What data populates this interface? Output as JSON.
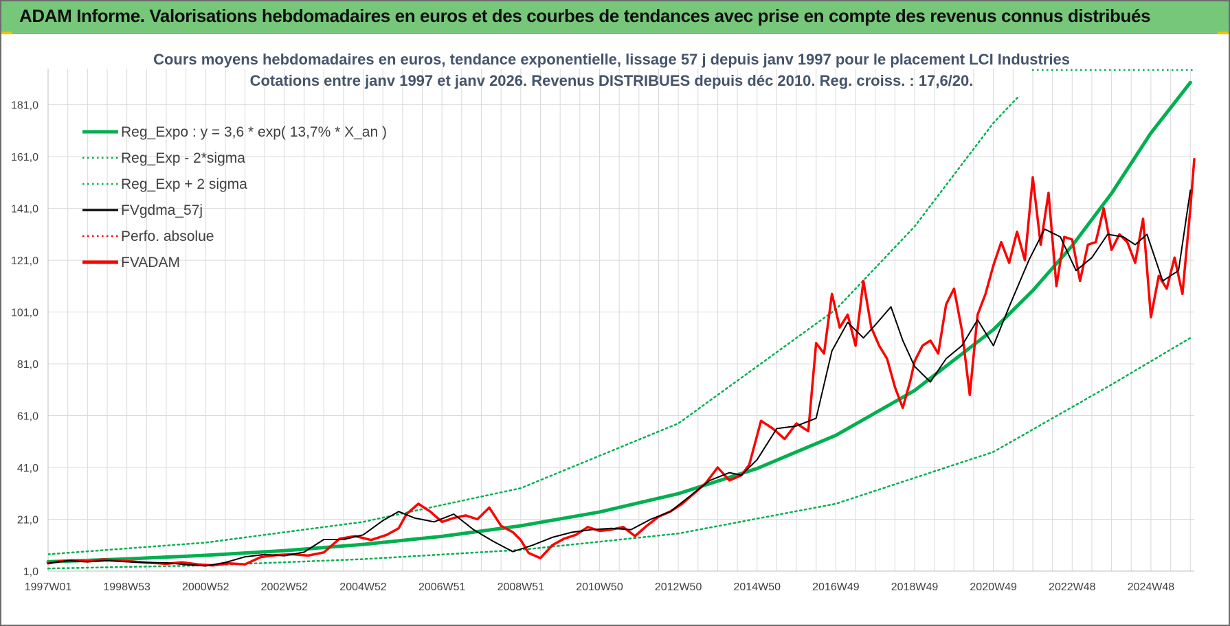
{
  "header": {
    "title": "ADAM Informe. Valorisations hebdomadaires en euros et des courbes de tendances avec prise en compte des revenus connus distribués"
  },
  "colors": {
    "banner_bg": "#77c77a",
    "regression": "#00b050",
    "smoothed": "#000000",
    "price": "#ff0000",
    "grid": "#d9d9d9",
    "title_text": "#44546a"
  },
  "chart_data": {
    "type": "line",
    "title": "Cours moyens hebdomadaires en euros, tendance exponentielle, lissage 57 j depuis janv 1997 pour le placement LCI Industries",
    "subtitle": "Cotations entre janv 1997 et janv 2026. Revenus DISTRIBUES depuis déc 2010. Reg. croiss. : 17,6/20.",
    "xlabel": "",
    "ylabel": "",
    "ylim": [
      1,
      187
    ],
    "xlim": [
      1997.0,
      2026.1
    ],
    "yticks": [
      "1,0",
      "21,0",
      "41,0",
      "61,0",
      "81,0",
      "101,0",
      "121,0",
      "141,0",
      "161,0",
      "181,0"
    ],
    "ytick_values": [
      1,
      21,
      41,
      61,
      81,
      101,
      121,
      141,
      161,
      181
    ],
    "xticks": [
      "1997W01",
      "1998W53",
      "2000W52",
      "2002W52",
      "2004W52",
      "2006W51",
      "2008W51",
      "2010W50",
      "2012W50",
      "2014W50",
      "2016W49",
      "2018W49",
      "2020W49",
      "2022W48",
      "2024W48"
    ],
    "xtick_values": [
      1997.0,
      1999.0,
      2001.0,
      2003.0,
      2005.0,
      2007.0,
      2009.0,
      2011.0,
      2013.0,
      2015.0,
      2017.0,
      2019.0,
      2021.0,
      2023.0,
      2025.0
    ],
    "legend": [
      {
        "key": "reg",
        "label": "Reg_Expo : y = 3,6 * exp( 13,7% *  X_an )",
        "style": "solid-thick",
        "color": "#00b050"
      },
      {
        "key": "lower",
        "label": "Reg_Exp - 2*sigma",
        "style": "dotted",
        "color": "#00b050"
      },
      {
        "key": "upper",
        "label": "Reg_Exp + 2 sigma",
        "style": "dotted",
        "color": "#00b050"
      },
      {
        "key": "smooth",
        "label": "FVgdma_57j",
        "style": "solid",
        "color": "#000000"
      },
      {
        "key": "perfo",
        "label": "Perfo. absolue",
        "style": "dotted",
        "color": "#ff0000"
      },
      {
        "key": "price",
        "label": "FVADAM",
        "style": "solid-thick",
        "color": "#ff0000"
      }
    ],
    "series": [
      {
        "name": "Reg_Expo",
        "key": "reg",
        "x": [
          1997,
          1999,
          2001,
          2003,
          2005,
          2007,
          2009,
          2011,
          2013,
          2015,
          2017,
          2019,
          2021,
          2022,
          2023,
          2024,
          2025,
          2026
        ],
        "values": [
          4.6,
          5.7,
          7.1,
          8.9,
          11.3,
          14.4,
          18.5,
          23.8,
          30.9,
          40.6,
          53.4,
          70.7,
          94.2,
          109.3,
          126.6,
          146.8,
          170.1,
          189.6
        ]
      },
      {
        "name": "Reg_Exp - 2*sigma",
        "key": "lower",
        "x": [
          1997,
          2001,
          2005,
          2009,
          2013,
          2017,
          2021,
          2024,
          2026
        ],
        "values": [
          2.0,
          3.2,
          5.6,
          9.2,
          15.5,
          27.0,
          47.0,
          73.0,
          91.0
        ]
      },
      {
        "name": "Reg_Exp + 2 sigma",
        "key": "upper",
        "x": [
          1997,
          2001,
          2005,
          2009,
          2013,
          2017,
          2019,
          2021,
          2022.0
        ],
        "values": [
          7.5,
          12.0,
          20.0,
          33.0,
          58.0,
          102.0,
          134.0,
          174.0,
          190.0
        ]
      },
      {
        "name": "FVgdma_57j",
        "key": "smooth",
        "x": [
          1997.0,
          1997.5,
          1998.0,
          1998.5,
          1999.0,
          1999.5,
          2000.0,
          2000.5,
          2001.0,
          2001.5,
          2002.0,
          2002.5,
          2003.0,
          2003.5,
          2004.0,
          2004.5,
          2005.0,
          2005.5,
          2005.9,
          2006.3,
          2006.8,
          2007.3,
          2007.8,
          2008.3,
          2008.8,
          2009.3,
          2009.8,
          2010.3,
          2010.8,
          2011.3,
          2011.8,
          2012.3,
          2012.8,
          2013.3,
          2013.8,
          2014.3,
          2014.6,
          2015.0,
          2015.5,
          2016.0,
          2016.5,
          2016.9,
          2017.3,
          2017.7,
          2018.0,
          2018.4,
          2018.7,
          2019.0,
          2019.4,
          2019.8,
          2020.2,
          2020.6,
          2021.0,
          2021.4,
          2021.9,
          2022.3,
          2022.7,
          2023.1,
          2023.5,
          2023.9,
          2024.3,
          2024.6,
          2024.9,
          2025.3,
          2025.7,
          2026.0
        ],
        "values": [
          4.0,
          5.0,
          4.6,
          5.0,
          4.6,
          4.2,
          4.2,
          3.5,
          3.0,
          4.3,
          6.5,
          7.4,
          6.9,
          8.3,
          13.2,
          13.2,
          15.0,
          20.5,
          24.0,
          21.5,
          20.0,
          23.0,
          17.0,
          12.5,
          8.5,
          11.0,
          14.0,
          16.0,
          17.0,
          17.5,
          17.0,
          21.0,
          24.0,
          30.0,
          36.0,
          39.0,
          38.0,
          44.0,
          56.0,
          57.0,
          60.0,
          86.0,
          97.0,
          91.0,
          96.0,
          103.0,
          90.0,
          80.0,
          74.0,
          83.0,
          88.0,
          98.0,
          88.0,
          103.0,
          121.0,
          133.0,
          130.0,
          117.0,
          122.0,
          131.0,
          130.0,
          127.0,
          131.0,
          113.0,
          117.0,
          148.0
        ]
      },
      {
        "name": "FVADAM",
        "key": "price",
        "x": [
          1997.0,
          1997.3,
          1997.6,
          1998.0,
          1998.4,
          1998.8,
          1999.2,
          1999.6,
          2000.0,
          2000.4,
          2000.8,
          2001.2,
          2001.6,
          2002.0,
          2002.4,
          2002.8,
          2003.2,
          2003.6,
          2004.0,
          2004.4,
          2004.8,
          2005.2,
          2005.6,
          2005.9,
          2006.1,
          2006.4,
          2006.7,
          2007.0,
          2007.3,
          2007.6,
          2007.9,
          2008.2,
          2008.5,
          2008.8,
          2009.0,
          2009.2,
          2009.5,
          2009.8,
          2010.1,
          2010.4,
          2010.7,
          2011.0,
          2011.3,
          2011.6,
          2011.9,
          2012.2,
          2012.5,
          2012.8,
          2013.1,
          2013.4,
          2013.7,
          2014.0,
          2014.3,
          2014.6,
          2014.8,
          2015.1,
          2015.4,
          2015.7,
          2016.0,
          2016.3,
          2016.5,
          2016.7,
          2016.9,
          2017.1,
          2017.3,
          2017.5,
          2017.7,
          2017.9,
          2018.1,
          2018.3,
          2018.5,
          2018.7,
          2018.9,
          2019.0,
          2019.2,
          2019.4,
          2019.6,
          2019.8,
          2020.0,
          2020.2,
          2020.4,
          2020.6,
          2020.8,
          2021.0,
          2021.2,
          2021.4,
          2021.6,
          2021.8,
          2022.0,
          2022.2,
          2022.4,
          2022.6,
          2022.8,
          2023.0,
          2023.2,
          2023.4,
          2023.6,
          2023.8,
          2024.0,
          2024.2,
          2024.4,
          2024.6,
          2024.8,
          2025.0,
          2025.2,
          2025.4,
          2025.6,
          2025.8,
          2026.0,
          2026.1
        ],
        "values": [
          4.0,
          4.8,
          5.2,
          4.7,
          5.5,
          5.0,
          4.6,
          4.2,
          3.8,
          4.4,
          3.6,
          3.2,
          4.0,
          3.6,
          6.4,
          7.2,
          7.5,
          7.0,
          8.2,
          13.5,
          14.5,
          13.0,
          15.0,
          17.5,
          23.0,
          27.0,
          24.0,
          20.0,
          21.5,
          22.5,
          21.0,
          25.5,
          18.5,
          16.0,
          13.0,
          8.0,
          6.0,
          11.0,
          13.5,
          15.0,
          18.0,
          16.5,
          17.0,
          18.0,
          14.5,
          18.5,
          22.0,
          24.0,
          27.0,
          31.0,
          35.0,
          41.0,
          36.0,
          38.0,
          42.0,
          59.0,
          56.0,
          52.0,
          58.0,
          55.0,
          89.0,
          85.0,
          108.0,
          95.0,
          100.0,
          88.0,
          113.0,
          95.0,
          88.0,
          83.0,
          72.0,
          64.0,
          75.0,
          82.0,
          88.0,
          90.0,
          85.0,
          104.0,
          110.0,
          94.0,
          69.0,
          100.0,
          108.0,
          119.0,
          128.0,
          120.0,
          132.0,
          121.0,
          153.0,
          127.0,
          147.0,
          111.0,
          130.0,
          129.0,
          113.0,
          127.0,
          128.0,
          141.0,
          125.0,
          131.0,
          128.0,
          120.0,
          137.0,
          99.0,
          115.0,
          110.0,
          122.0,
          108.0,
          141.0,
          160.0
        ]
      }
    ]
  }
}
